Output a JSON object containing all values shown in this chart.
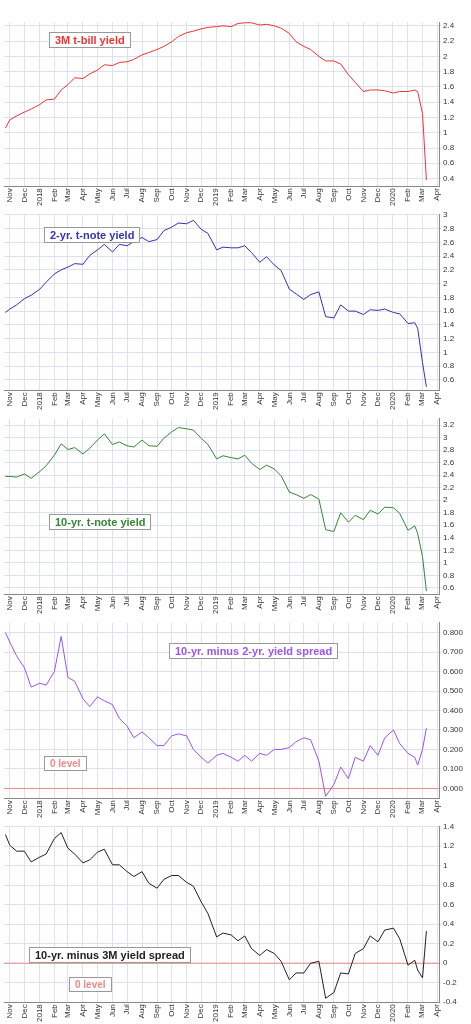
{
  "chart_data": [
    {
      "type": "line",
      "title": "3M t-bill yield",
      "color": "#ee3333",
      "grid": true,
      "marker": "none",
      "line_style": "solid",
      "x": [
        "2017-10-23",
        "2017-11-01",
        "2017-11-15",
        "2017-12-01",
        "2017-12-15",
        "2018-01-02",
        "2018-01-15",
        "2018-02-01",
        "2018-02-15",
        "2018-03-01",
        "2018-03-15",
        "2018-04-01",
        "2018-04-15",
        "2018-05-01",
        "2018-05-15",
        "2018-06-01",
        "2018-06-15",
        "2018-07-01",
        "2018-07-15",
        "2018-08-01",
        "2018-08-15",
        "2018-09-01",
        "2018-09-15",
        "2018-10-01",
        "2018-10-15",
        "2018-11-01",
        "2018-11-15",
        "2018-12-01",
        "2018-12-15",
        "2019-01-02",
        "2019-01-15",
        "2019-02-01",
        "2019-02-15",
        "2019-03-01",
        "2019-03-15",
        "2019-04-01",
        "2019-04-15",
        "2019-05-01",
        "2019-05-15",
        "2019-06-01",
        "2019-06-15",
        "2019-07-01",
        "2019-07-15",
        "2019-08-01",
        "2019-08-15",
        "2019-09-01",
        "2019-09-15",
        "2019-10-01",
        "2019-10-15",
        "2019-11-01",
        "2019-11-15",
        "2019-12-01",
        "2019-12-15",
        "2020-01-02",
        "2020-01-15",
        "2020-02-01",
        "2020-02-15",
        "2020-02-21",
        "2020-03-02",
        "2020-03-10"
      ],
      "values": [
        1.06,
        1.17,
        1.22,
        1.27,
        1.31,
        1.37,
        1.43,
        1.44,
        1.56,
        1.63,
        1.72,
        1.71,
        1.77,
        1.82,
        1.89,
        1.88,
        1.92,
        1.93,
        1.96,
        2.02,
        2.05,
        2.09,
        2.13,
        2.19,
        2.26,
        2.31,
        2.33,
        2.36,
        2.38,
        2.39,
        2.4,
        2.39,
        2.43,
        2.44,
        2.44,
        2.41,
        2.42,
        2.4,
        2.37,
        2.3,
        2.19,
        2.13,
        2.09,
        2.0,
        1.94,
        1.94,
        1.9,
        1.76,
        1.66,
        1.54,
        1.56,
        1.56,
        1.55,
        1.52,
        1.54,
        1.54,
        1.56,
        1.54,
        1.25,
        0.38
      ],
      "xlim": [
        "2017-10-20",
        "2020-04-05"
      ],
      "xticks": [
        {
          "value": "2017-11-01",
          "label": "Nov"
        },
        {
          "value": "2017-12-01",
          "label": "Dec"
        },
        {
          "value": "2018-01-01",
          "label": "2018"
        },
        {
          "value": "2018-02-01",
          "label": "Feb"
        },
        {
          "value": "2018-03-01",
          "label": "Mar"
        },
        {
          "value": "2018-04-01",
          "label": "Apr"
        },
        {
          "value": "2018-05-01",
          "label": "May"
        },
        {
          "value": "2018-06-01",
          "label": "Jun"
        },
        {
          "value": "2018-07-01",
          "label": "Jul"
        },
        {
          "value": "2018-08-01",
          "label": "Aug"
        },
        {
          "value": "2018-09-01",
          "label": "Sep"
        },
        {
          "value": "2018-10-01",
          "label": "Oct"
        },
        {
          "value": "2018-11-01",
          "label": "Nov"
        },
        {
          "value": "2018-12-01",
          "label": "Dec"
        },
        {
          "value": "2019-01-01",
          "label": "2019"
        },
        {
          "value": "2019-02-01",
          "label": "Feb"
        },
        {
          "value": "2019-03-01",
          "label": "Mar"
        },
        {
          "value": "2019-04-01",
          "label": "Apr"
        },
        {
          "value": "2019-05-01",
          "label": "May"
        },
        {
          "value": "2019-06-01",
          "label": "Jun"
        },
        {
          "value": "2019-07-01",
          "label": "Jul"
        },
        {
          "value": "2019-08-01",
          "label": "Aug"
        },
        {
          "value": "2019-09-01",
          "label": "Sep"
        },
        {
          "value": "2019-10-01",
          "label": "Oct"
        },
        {
          "value": "2019-11-01",
          "label": "Nov"
        },
        {
          "value": "2019-12-01",
          "label": "Dec"
        },
        {
          "value": "2020-01-01",
          "label": "2020"
        },
        {
          "value": "2020-02-01",
          "label": "Feb"
        },
        {
          "value": "2020-03-01",
          "label": "Mar"
        },
        {
          "value": "2020-04-01",
          "label": "Apr"
        }
      ],
      "ylim": [
        0.3,
        2.45
      ],
      "yticks": [
        0.4,
        0.6,
        0.8,
        1.0,
        1.2,
        1.4,
        1.6,
        1.8,
        2.0,
        2.2,
        2.4
      ]
    },
    {
      "type": "line",
      "title": "2-yr. t-note yield",
      "color": "#3333aa",
      "grid": true,
      "marker": "none",
      "line_style": "solid",
      "x": [
        "2017-10-23",
        "2017-11-01",
        "2017-11-15",
        "2017-12-01",
        "2017-12-15",
        "2018-01-02",
        "2018-01-15",
        "2018-02-01",
        "2018-02-15",
        "2018-03-01",
        "2018-03-15",
        "2018-04-01",
        "2018-04-15",
        "2018-05-01",
        "2018-05-15",
        "2018-06-01",
        "2018-06-15",
        "2018-07-01",
        "2018-07-15",
        "2018-08-01",
        "2018-08-15",
        "2018-09-01",
        "2018-09-15",
        "2018-10-01",
        "2018-10-15",
        "2018-11-01",
        "2018-11-15",
        "2018-12-01",
        "2018-12-15",
        "2019-01-02",
        "2019-01-15",
        "2019-02-01",
        "2019-02-15",
        "2019-03-01",
        "2019-03-15",
        "2019-04-01",
        "2019-04-15",
        "2019-05-01",
        "2019-05-15",
        "2019-06-01",
        "2019-06-15",
        "2019-07-01",
        "2019-07-15",
        "2019-08-01",
        "2019-08-15",
        "2019-09-01",
        "2019-09-15",
        "2019-10-01",
        "2019-10-15",
        "2019-11-01",
        "2019-11-15",
        "2019-12-01",
        "2019-12-15",
        "2020-01-02",
        "2020-01-15",
        "2020-02-01",
        "2020-02-15",
        "2020-02-21",
        "2020-03-02",
        "2020-03-10"
      ],
      "values": [
        1.58,
        1.63,
        1.69,
        1.78,
        1.83,
        1.92,
        2.02,
        2.14,
        2.2,
        2.24,
        2.29,
        2.28,
        2.41,
        2.49,
        2.57,
        2.46,
        2.57,
        2.55,
        2.61,
        2.67,
        2.61,
        2.64,
        2.77,
        2.82,
        2.88,
        2.87,
        2.92,
        2.79,
        2.73,
        2.49,
        2.53,
        2.52,
        2.52,
        2.55,
        2.45,
        2.31,
        2.39,
        2.27,
        2.19,
        1.92,
        1.85,
        1.77,
        1.84,
        1.88,
        1.52,
        1.5,
        1.69,
        1.6,
        1.6,
        1.55,
        1.62,
        1.61,
        1.63,
        1.58,
        1.56,
        1.42,
        1.43,
        1.35,
        0.85,
        0.5
      ],
      "xlim": [
        "2017-10-20",
        "2020-04-05"
      ],
      "xticks": [
        {
          "value": "2017-11-01",
          "label": "Nov"
        },
        {
          "value": "2017-12-01",
          "label": "Dec"
        },
        {
          "value": "2018-01-01",
          "label": "2018"
        },
        {
          "value": "2018-02-01",
          "label": "Feb"
        },
        {
          "value": "2018-03-01",
          "label": "Mar"
        },
        {
          "value": "2018-04-01",
          "label": "Apr"
        },
        {
          "value": "2018-05-01",
          "label": "May"
        },
        {
          "value": "2018-06-01",
          "label": "Jun"
        },
        {
          "value": "2018-07-01",
          "label": "Jul"
        },
        {
          "value": "2018-08-01",
          "label": "Aug"
        },
        {
          "value": "2018-09-01",
          "label": "Sep"
        },
        {
          "value": "2018-10-01",
          "label": "Oct"
        },
        {
          "value": "2018-11-01",
          "label": "Nov"
        },
        {
          "value": "2018-12-01",
          "label": "Dec"
        },
        {
          "value": "2019-01-01",
          "label": "2019"
        },
        {
          "value": "2019-02-01",
          "label": "Feb"
        },
        {
          "value": "2019-03-01",
          "label": "Mar"
        },
        {
          "value": "2019-04-01",
          "label": "Apr"
        },
        {
          "value": "2019-05-01",
          "label": "May"
        },
        {
          "value": "2019-06-01",
          "label": "Jun"
        },
        {
          "value": "2019-07-01",
          "label": "Jul"
        },
        {
          "value": "2019-08-01",
          "label": "Aug"
        },
        {
          "value": "2019-09-01",
          "label": "Sep"
        },
        {
          "value": "2019-10-01",
          "label": "Oct"
        },
        {
          "value": "2019-11-01",
          "label": "Nov"
        },
        {
          "value": "2019-12-01",
          "label": "Dec"
        },
        {
          "value": "2020-01-01",
          "label": "2020"
        },
        {
          "value": "2020-02-01",
          "label": "Feb"
        },
        {
          "value": "2020-03-01",
          "label": "Mar"
        },
        {
          "value": "2020-04-01",
          "label": "Apr"
        }
      ],
      "ylim": [
        0.45,
        3.0
      ],
      "yticks": [
        0.6,
        0.8,
        1.0,
        1.2,
        1.4,
        1.6,
        1.8,
        2.0,
        2.2,
        2.4,
        2.6,
        2.8,
        3.0
      ]
    },
    {
      "type": "line",
      "title": "10-yr. t-note yield",
      "color": "#338833",
      "grid": true,
      "marker": "none",
      "line_style": "solid",
      "x": [
        "2017-10-23",
        "2017-11-01",
        "2017-11-15",
        "2017-12-01",
        "2017-12-15",
        "2018-01-02",
        "2018-01-15",
        "2018-02-01",
        "2018-02-15",
        "2018-03-01",
        "2018-03-15",
        "2018-04-01",
        "2018-04-15",
        "2018-05-01",
        "2018-05-15",
        "2018-06-01",
        "2018-06-15",
        "2018-07-01",
        "2018-07-15",
        "2018-08-01",
        "2018-08-15",
        "2018-09-01",
        "2018-09-15",
        "2018-10-01",
        "2018-10-15",
        "2018-11-01",
        "2018-11-15",
        "2018-12-01",
        "2018-12-15",
        "2019-01-02",
        "2019-01-15",
        "2019-02-01",
        "2019-02-15",
        "2019-03-01",
        "2019-03-15",
        "2019-04-01",
        "2019-04-15",
        "2019-05-01",
        "2019-05-15",
        "2019-06-01",
        "2019-06-15",
        "2019-07-01",
        "2019-07-15",
        "2019-08-01",
        "2019-08-15",
        "2019-09-01",
        "2019-09-15",
        "2019-10-01",
        "2019-10-15",
        "2019-11-01",
        "2019-11-15",
        "2019-12-01",
        "2019-12-15",
        "2020-01-02",
        "2020-01-15",
        "2020-02-01",
        "2020-02-15",
        "2020-02-21",
        "2020-03-02",
        "2020-03-10"
      ],
      "values": [
        2.38,
        2.38,
        2.37,
        2.42,
        2.35,
        2.46,
        2.55,
        2.72,
        2.9,
        2.81,
        2.84,
        2.74,
        2.83,
        2.96,
        3.06,
        2.89,
        2.93,
        2.87,
        2.85,
        2.96,
        2.87,
        2.86,
        2.99,
        3.09,
        3.16,
        3.14,
        3.12,
        2.99,
        2.89,
        2.66,
        2.71,
        2.68,
        2.66,
        2.72,
        2.59,
        2.49,
        2.56,
        2.5,
        2.39,
        2.13,
        2.09,
        2.03,
        2.09,
        2.02,
        1.53,
        1.5,
        1.8,
        1.65,
        1.76,
        1.69,
        1.84,
        1.78,
        1.89,
        1.88,
        1.79,
        1.52,
        1.59,
        1.47,
        1.1,
        0.55
      ],
      "xlim": [
        "2017-10-20",
        "2020-04-05"
      ],
      "xticks": [
        {
          "value": "2017-11-01",
          "label": "Nov"
        },
        {
          "value": "2017-12-01",
          "label": "Dec"
        },
        {
          "value": "2018-01-01",
          "label": "2018"
        },
        {
          "value": "2018-02-01",
          "label": "Feb"
        },
        {
          "value": "2018-03-01",
          "label": "Mar"
        },
        {
          "value": "2018-04-01",
          "label": "Apr"
        },
        {
          "value": "2018-05-01",
          "label": "May"
        },
        {
          "value": "2018-06-01",
          "label": "Jun"
        },
        {
          "value": "2018-07-01",
          "label": "Jul"
        },
        {
          "value": "2018-08-01",
          "label": "Aug"
        },
        {
          "value": "2018-09-01",
          "label": "Sep"
        },
        {
          "value": "2018-10-01",
          "label": "Oct"
        },
        {
          "value": "2018-11-01",
          "label": "Nov"
        },
        {
          "value": "2018-12-01",
          "label": "Dec"
        },
        {
          "value": "2019-01-01",
          "label": "2019"
        },
        {
          "value": "2019-02-01",
          "label": "Feb"
        },
        {
          "value": "2019-03-01",
          "label": "Mar"
        },
        {
          "value": "2019-04-01",
          "label": "Apr"
        },
        {
          "value": "2019-05-01",
          "label": "May"
        },
        {
          "value": "2019-06-01",
          "label": "Jun"
        },
        {
          "value": "2019-07-01",
          "label": "Jul"
        },
        {
          "value": "2019-08-01",
          "label": "Aug"
        },
        {
          "value": "2019-09-01",
          "label": "Sep"
        },
        {
          "value": "2019-10-01",
          "label": "Oct"
        },
        {
          "value": "2019-11-01",
          "label": "Nov"
        },
        {
          "value": "2019-12-01",
          "label": "Dec"
        },
        {
          "value": "2020-01-01",
          "label": "2020"
        },
        {
          "value": "2020-02-01",
          "label": "Feb"
        },
        {
          "value": "2020-03-01",
          "label": "Mar"
        },
        {
          "value": "2020-04-01",
          "label": "Apr"
        }
      ],
      "ylim": [
        0.5,
        3.3
      ],
      "yticks": [
        0.6,
        0.8,
        1.0,
        1.2,
        1.4,
        1.6,
        1.8,
        2.0,
        2.2,
        2.4,
        2.6,
        2.8,
        3.0,
        3.2
      ]
    },
    {
      "type": "line",
      "title": "10-yr. minus 2-yr. yield spread",
      "color": "#9955ee",
      "grid": true,
      "marker": "none",
      "line_style": "solid",
      "x": [
        "2017-10-23",
        "2017-11-01",
        "2017-11-15",
        "2017-12-01",
        "2017-12-15",
        "2018-01-02",
        "2018-01-15",
        "2018-02-01",
        "2018-02-15",
        "2018-03-01",
        "2018-03-15",
        "2018-04-01",
        "2018-04-15",
        "2018-05-01",
        "2018-05-15",
        "2018-06-01",
        "2018-06-15",
        "2018-07-01",
        "2018-07-15",
        "2018-08-01",
        "2018-08-15",
        "2018-09-01",
        "2018-09-15",
        "2018-10-01",
        "2018-10-15",
        "2018-11-01",
        "2018-11-15",
        "2018-12-01",
        "2018-12-15",
        "2019-01-02",
        "2019-01-15",
        "2019-02-01",
        "2019-02-15",
        "2019-03-01",
        "2019-03-15",
        "2019-04-01",
        "2019-04-15",
        "2019-05-01",
        "2019-05-15",
        "2019-06-01",
        "2019-06-15",
        "2019-07-01",
        "2019-07-15",
        "2019-08-01",
        "2019-08-15",
        "2019-09-01",
        "2019-09-15",
        "2019-10-01",
        "2019-10-15",
        "2019-11-01",
        "2019-11-15",
        "2019-12-01",
        "2019-12-15",
        "2020-01-02",
        "2020-01-15",
        "2020-02-01",
        "2020-02-15",
        "2020-02-21",
        "2020-03-02",
        "2020-03-10"
      ],
      "values": [
        0.8,
        0.75,
        0.68,
        0.62,
        0.52,
        0.54,
        0.53,
        0.6,
        0.78,
        0.57,
        0.55,
        0.46,
        0.42,
        0.47,
        0.45,
        0.43,
        0.36,
        0.32,
        0.26,
        0.29,
        0.26,
        0.22,
        0.22,
        0.27,
        0.28,
        0.27,
        0.2,
        0.16,
        0.13,
        0.17,
        0.18,
        0.16,
        0.14,
        0.17,
        0.14,
        0.18,
        0.17,
        0.2,
        0.2,
        0.21,
        0.24,
        0.26,
        0.25,
        0.14,
        -0.04,
        0.02,
        0.11,
        0.05,
        0.16,
        0.14,
        0.22,
        0.17,
        0.26,
        0.3,
        0.23,
        0.18,
        0.16,
        0.12,
        0.2,
        0.31
      ],
      "xlim": [
        "2017-10-20",
        "2020-04-05"
      ],
      "xticks": [
        {
          "value": "2017-11-01",
          "label": "Nov"
        },
        {
          "value": "2017-12-01",
          "label": "Dec"
        },
        {
          "value": "2018-01-01",
          "label": "2018"
        },
        {
          "value": "2018-02-01",
          "label": "Feb"
        },
        {
          "value": "2018-03-01",
          "label": "Mar"
        },
        {
          "value": "2018-04-01",
          "label": "Apr"
        },
        {
          "value": "2018-05-01",
          "label": "May"
        },
        {
          "value": "2018-06-01",
          "label": "Jun"
        },
        {
          "value": "2018-07-01",
          "label": "Jul"
        },
        {
          "value": "2018-08-01",
          "label": "Aug"
        },
        {
          "value": "2018-09-01",
          "label": "Sep"
        },
        {
          "value": "2018-10-01",
          "label": "Oct"
        },
        {
          "value": "2018-11-01",
          "label": "Nov"
        },
        {
          "value": "2018-12-01",
          "label": "Dec"
        },
        {
          "value": "2019-01-01",
          "label": "2019"
        },
        {
          "value": "2019-02-01",
          "label": "Feb"
        },
        {
          "value": "2019-03-01",
          "label": "Mar"
        },
        {
          "value": "2019-04-01",
          "label": "Apr"
        },
        {
          "value": "2019-05-01",
          "label": "May"
        },
        {
          "value": "2019-06-01",
          "label": "Jun"
        },
        {
          "value": "2019-07-01",
          "label": "Jul"
        },
        {
          "value": "2019-08-01",
          "label": "Aug"
        },
        {
          "value": "2019-09-01",
          "label": "Sep"
        },
        {
          "value": "2019-10-01",
          "label": "Oct"
        },
        {
          "value": "2019-11-01",
          "label": "Nov"
        },
        {
          "value": "2019-12-01",
          "label": "Dec"
        },
        {
          "value": "2020-01-01",
          "label": "2020"
        },
        {
          "value": "2020-02-01",
          "label": "Feb"
        },
        {
          "value": "2020-03-01",
          "label": "Mar"
        },
        {
          "value": "2020-04-01",
          "label": "Apr"
        }
      ],
      "ylim": [
        -0.05,
        0.85
      ],
      "yticks": [
        {
          "value": 0,
          "label": "0.000"
        },
        {
          "value": 0.1,
          "label": "0.100"
        },
        {
          "value": 0.2,
          "label": "0.200"
        },
        {
          "value": 0.3,
          "label": "0.300"
        },
        {
          "value": 0.4,
          "label": "0.400"
        },
        {
          "value": 0.5,
          "label": "0.500"
        },
        {
          "value": 0.6,
          "label": "0.600"
        },
        {
          "value": 0.7,
          "label": "0.700"
        },
        {
          "value": 0.8,
          "label": "0.800"
        }
      ],
      "ref_lines": [
        {
          "axis": "y",
          "value": 0,
          "label": "0 level",
          "color": "#ee8888"
        }
      ]
    },
    {
      "type": "line",
      "title": "10-yr. minus 3M yield spread",
      "color": "#222222",
      "grid": true,
      "marker": "none",
      "line_style": "solid",
      "x": [
        "2017-10-23",
        "2017-11-01",
        "2017-11-15",
        "2017-12-01",
        "2017-12-15",
        "2018-01-02",
        "2018-01-15",
        "2018-02-01",
        "2018-02-15",
        "2018-03-01",
        "2018-03-15",
        "2018-04-01",
        "2018-04-15",
        "2018-05-01",
        "2018-05-15",
        "2018-06-01",
        "2018-06-15",
        "2018-07-01",
        "2018-07-15",
        "2018-08-01",
        "2018-08-15",
        "2018-09-01",
        "2018-09-15",
        "2018-10-01",
        "2018-10-15",
        "2018-11-01",
        "2018-11-15",
        "2018-12-01",
        "2018-12-15",
        "2019-01-02",
        "2019-01-15",
        "2019-02-01",
        "2019-02-15",
        "2019-03-01",
        "2019-03-15",
        "2019-04-01",
        "2019-04-15",
        "2019-05-01",
        "2019-05-15",
        "2019-06-01",
        "2019-06-15",
        "2019-07-01",
        "2019-07-15",
        "2019-08-01",
        "2019-08-15",
        "2019-09-01",
        "2019-09-15",
        "2019-10-01",
        "2019-10-15",
        "2019-11-01",
        "2019-11-15",
        "2019-12-01",
        "2019-12-15",
        "2020-01-02",
        "2020-01-15",
        "2020-02-01",
        "2020-02-15",
        "2020-02-21",
        "2020-03-02",
        "2020-03-10"
      ],
      "values": [
        1.32,
        1.21,
        1.15,
        1.15,
        1.04,
        1.09,
        1.12,
        1.28,
        1.34,
        1.18,
        1.12,
        1.03,
        1.06,
        1.14,
        1.17,
        1.01,
        1.01,
        0.94,
        0.89,
        0.94,
        0.82,
        0.77,
        0.86,
        0.9,
        0.9,
        0.83,
        0.79,
        0.63,
        0.51,
        0.27,
        0.31,
        0.29,
        0.23,
        0.28,
        0.15,
        0.08,
        0.14,
        0.1,
        0.02,
        -0.17,
        -0.1,
        -0.1,
        0.0,
        0.02,
        -0.36,
        -0.3,
        -0.1,
        -0.11,
        0.1,
        0.15,
        0.28,
        0.22,
        0.34,
        0.36,
        0.25,
        -0.02,
        0.03,
        -0.07,
        -0.15,
        0.33
      ],
      "xlim": [
        "2017-10-20",
        "2020-04-05"
      ],
      "xticks": [
        {
          "value": "2017-11-01",
          "label": "Nov"
        },
        {
          "value": "2017-12-01",
          "label": "Dec"
        },
        {
          "value": "2018-01-01",
          "label": "2018"
        },
        {
          "value": "2018-02-01",
          "label": "Feb"
        },
        {
          "value": "2018-03-01",
          "label": "Mar"
        },
        {
          "value": "2018-04-01",
          "label": "Apr"
        },
        {
          "value": "2018-05-01",
          "label": "May"
        },
        {
          "value": "2018-06-01",
          "label": "Jun"
        },
        {
          "value": "2018-07-01",
          "label": "Jul"
        },
        {
          "value": "2018-08-01",
          "label": "Aug"
        },
        {
          "value": "2018-09-01",
          "label": "Sep"
        },
        {
          "value": "2018-10-01",
          "label": "Oct"
        },
        {
          "value": "2018-11-01",
          "label": "Nov"
        },
        {
          "value": "2018-12-01",
          "label": "Dec"
        },
        {
          "value": "2019-01-01",
          "label": "2019"
        },
        {
          "value": "2019-02-01",
          "label": "Feb"
        },
        {
          "value": "2019-03-01",
          "label": "Mar"
        },
        {
          "value": "2019-04-01",
          "label": "Apr"
        },
        {
          "value": "2019-05-01",
          "label": "May"
        },
        {
          "value": "2019-06-01",
          "label": "Jun"
        },
        {
          "value": "2019-07-01",
          "label": "Jul"
        },
        {
          "value": "2019-08-01",
          "label": "Aug"
        },
        {
          "value": "2019-09-01",
          "label": "Sep"
        },
        {
          "value": "2019-10-01",
          "label": "Oct"
        },
        {
          "value": "2019-11-01",
          "label": "Nov"
        },
        {
          "value": "2019-12-01",
          "label": "Dec"
        },
        {
          "value": "2020-01-01",
          "label": "2020"
        },
        {
          "value": "2020-02-01",
          "label": "Feb"
        },
        {
          "value": "2020-03-01",
          "label": "Mar"
        },
        {
          "value": "2020-04-01",
          "label": "Apr"
        }
      ],
      "ylim": [
        -0.4,
        1.4
      ],
      "yticks": [
        -0.4,
        -0.2,
        0,
        0.2,
        0.4,
        0.6,
        0.8,
        1.0,
        1.2,
        1.4
      ],
      "ref_lines": [
        {
          "axis": "y",
          "value": 0,
          "label": "0 level",
          "color": "#ee8888"
        }
      ]
    }
  ]
}
